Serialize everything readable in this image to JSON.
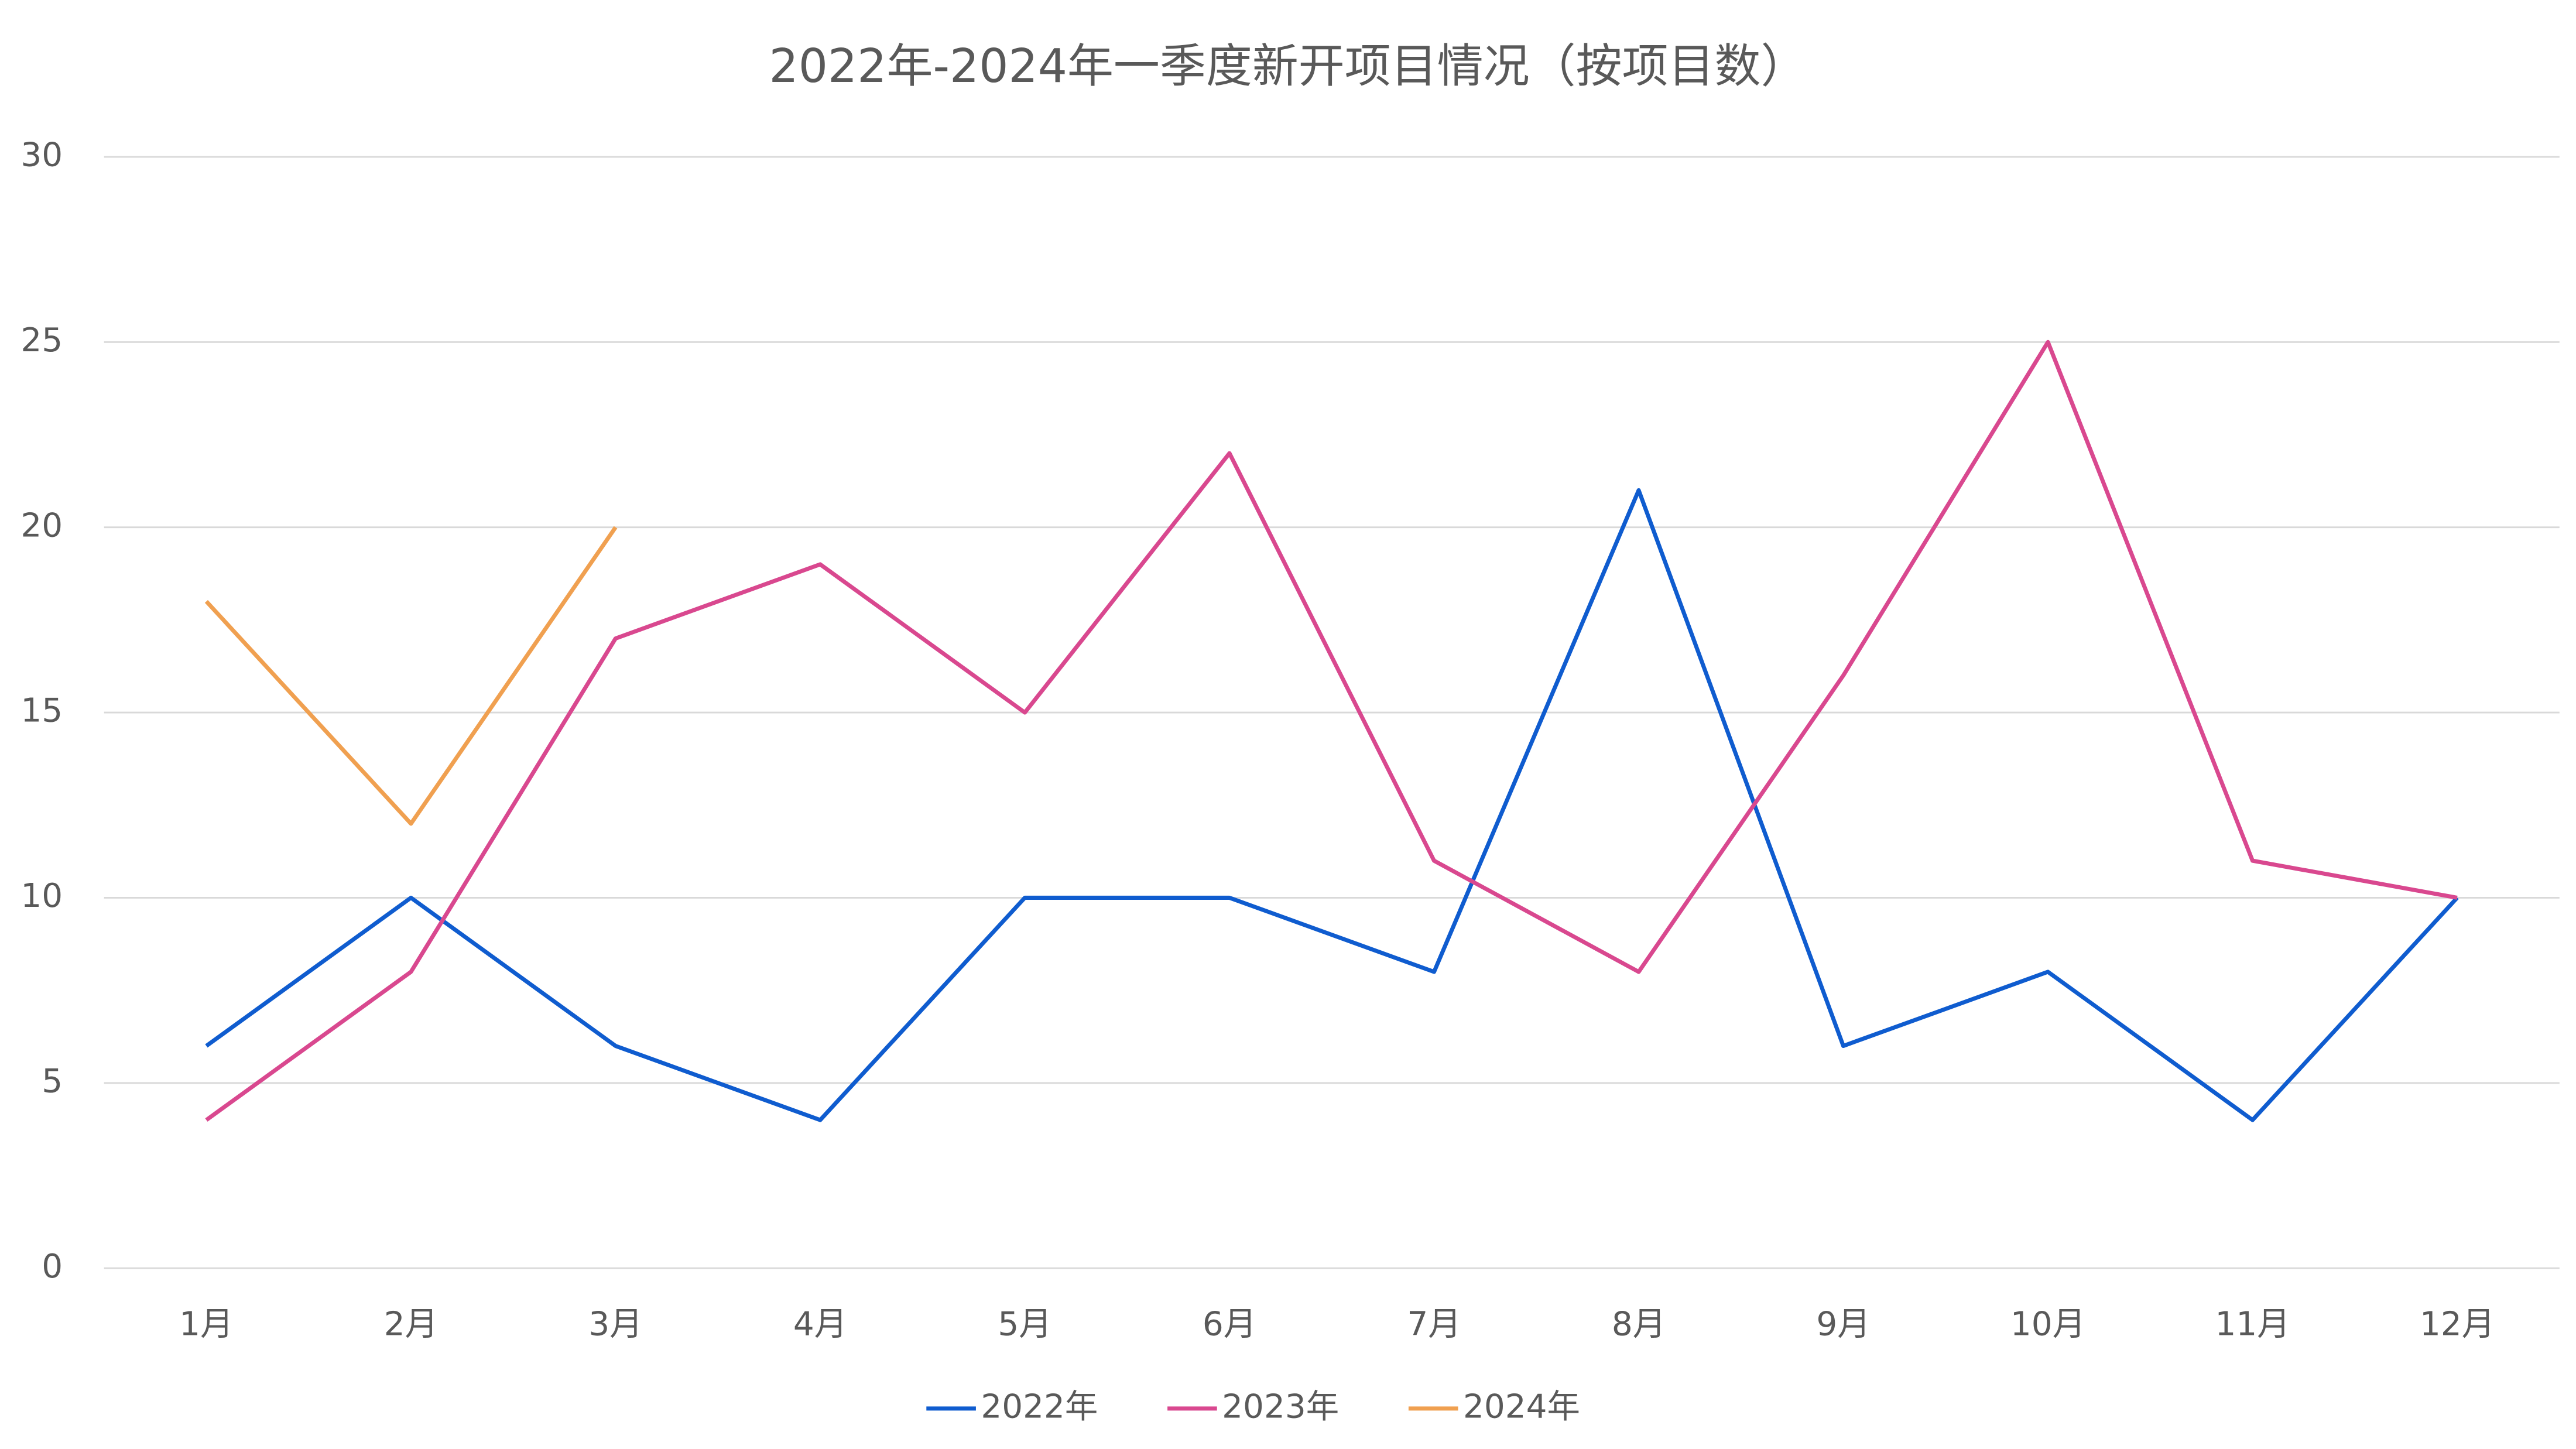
{
  "chart_data": {
    "type": "line",
    "title": "2022年-2024年一季度新开项目情况（按项目数）",
    "categories": [
      "1月",
      "2月",
      "3月",
      "4月",
      "5月",
      "6月",
      "7月",
      "8月",
      "9月",
      "10月",
      "11月",
      "12月"
    ],
    "series": [
      {
        "name": "2022年",
        "color": "#0f5ccf",
        "values": [
          6,
          10,
          6,
          4,
          10,
          10,
          8,
          21,
          6,
          8,
          4,
          10
        ]
      },
      {
        "name": "2023年",
        "color": "#d9488f",
        "values": [
          4,
          8,
          17,
          19,
          15,
          22,
          11,
          8,
          16,
          25,
          11,
          10
        ]
      },
      {
        "name": "2024年",
        "color": "#f0a050",
        "values": [
          18,
          12,
          20,
          null,
          null,
          null,
          null,
          null,
          null,
          null,
          null,
          null
        ]
      }
    ],
    "ylim": [
      0,
      30
    ],
    "yticks": [
      0,
      5,
      10,
      15,
      20,
      25,
      30
    ],
    "grid": true,
    "legend": "bottom"
  }
}
